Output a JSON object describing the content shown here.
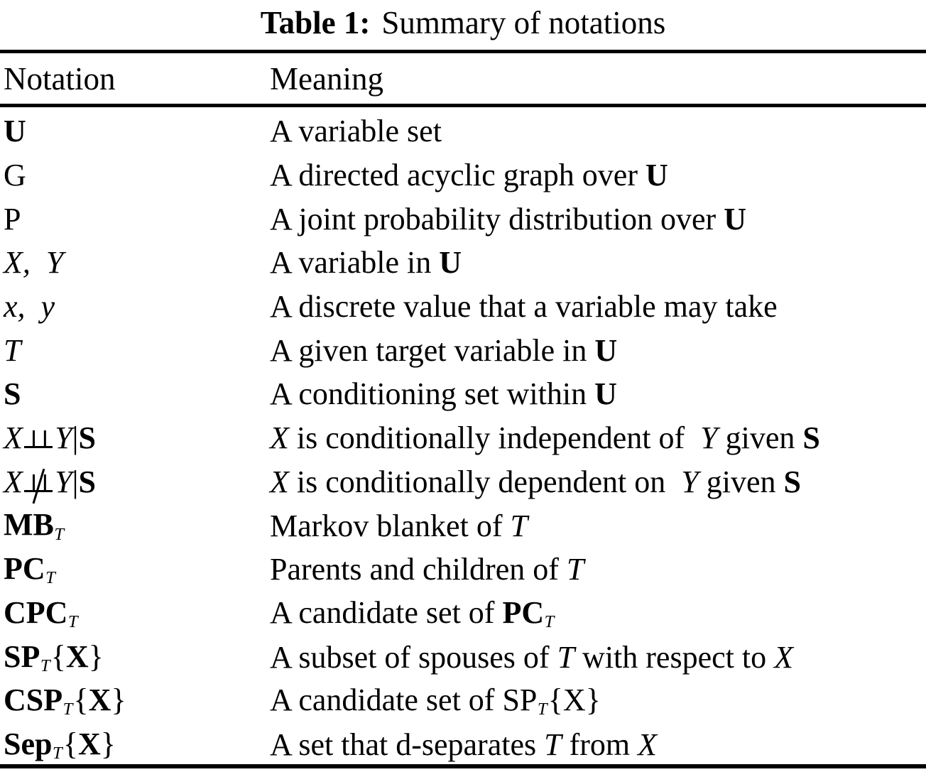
{
  "colors": {
    "background": "#ffffff",
    "text": "#000000",
    "rule": "#000000"
  },
  "caption": {
    "label": "Table 1:",
    "title": "Summary of notations"
  },
  "table": {
    "headers": [
      "Notation",
      "Meaning"
    ],
    "rows": [
      {
        "notation": [
          {
            "t": "U",
            "s": "b"
          }
        ],
        "meaning": [
          {
            "t": "A variable set",
            "s": "rm"
          }
        ]
      },
      {
        "notation": [
          {
            "t": "G",
            "s": "rm"
          }
        ],
        "meaning": [
          {
            "t": "A directed acyclic graph over ",
            "s": "rm"
          },
          {
            "t": "U",
            "s": "b"
          }
        ]
      },
      {
        "notation": [
          {
            "t": "P",
            "s": "rm"
          }
        ],
        "meaning": [
          {
            "t": "A joint probability distribution over ",
            "s": "rm"
          },
          {
            "t": "U",
            "s": "b"
          }
        ]
      },
      {
        "notation": [
          {
            "t": "X, Y",
            "s": "i"
          }
        ],
        "meaning": [
          {
            "t": "A variable in ",
            "s": "rm"
          },
          {
            "t": "U",
            "s": "b"
          }
        ]
      },
      {
        "notation": [
          {
            "t": "x, y",
            "s": "i"
          }
        ],
        "meaning": [
          {
            "t": "A discrete value that a variable may take",
            "s": "rm"
          }
        ]
      },
      {
        "notation": [
          {
            "t": "T",
            "s": "i"
          }
        ],
        "meaning": [
          {
            "t": "A given target variable in ",
            "s": "rm"
          },
          {
            "t": "U",
            "s": "b"
          }
        ]
      },
      {
        "notation": [
          {
            "t": "S",
            "s": "b"
          }
        ],
        "meaning": [
          {
            "t": "A conditioning set within ",
            "s": "rm"
          },
          {
            "t": "U",
            "s": "b"
          }
        ]
      },
      {
        "notation": [
          {
            "t": "X",
            "s": "i"
          },
          {
            "t": "",
            "s": "indep"
          },
          {
            "t": "Y",
            "s": "i"
          },
          {
            "t": "|",
            "s": "rm"
          },
          {
            "t": "S",
            "s": "b"
          }
        ],
        "meaning": [
          {
            "t": "X",
            "s": "i"
          },
          {
            "t": " is conditionally independent of ",
            "s": "rm"
          },
          {
            "t": "Y",
            "s": "i"
          },
          {
            "t": " given ",
            "s": "rm"
          },
          {
            "t": "S",
            "s": "b"
          }
        ]
      },
      {
        "notation": [
          {
            "t": "X",
            "s": "i"
          },
          {
            "t": "",
            "s": "nindep"
          },
          {
            "t": "Y",
            "s": "i"
          },
          {
            "t": "|",
            "s": "rm"
          },
          {
            "t": "S",
            "s": "b"
          }
        ],
        "meaning": [
          {
            "t": "X",
            "s": "i"
          },
          {
            "t": " is conditionally dependent on ",
            "s": "rm"
          },
          {
            "t": "Y",
            "s": "i"
          },
          {
            "t": " given ",
            "s": "rm"
          },
          {
            "t": "S",
            "s": "b"
          }
        ]
      },
      {
        "notation": [
          {
            "t": "MB",
            "s": "b"
          },
          {
            "t": "T",
            "s": "isub"
          }
        ],
        "meaning": [
          {
            "t": "Markov blanket of ",
            "s": "rm"
          },
          {
            "t": "T",
            "s": "i"
          }
        ]
      },
      {
        "notation": [
          {
            "t": "PC",
            "s": "b"
          },
          {
            "t": "T",
            "s": "isub"
          }
        ],
        "meaning": [
          {
            "t": "Parents and children of ",
            "s": "rm"
          },
          {
            "t": "T",
            "s": "i"
          }
        ]
      },
      {
        "notation": [
          {
            "t": "CPC",
            "s": "b"
          },
          {
            "t": "T",
            "s": "isub"
          }
        ],
        "meaning": [
          {
            "t": "A candidate set of ",
            "s": "rm"
          },
          {
            "t": "PC",
            "s": "b"
          },
          {
            "t": "T",
            "s": "isub"
          }
        ]
      },
      {
        "notation": [
          {
            "t": "SP",
            "s": "b"
          },
          {
            "t": "T",
            "s": "isub"
          },
          {
            "t": "{",
            "s": "rm"
          },
          {
            "t": "X",
            "s": "b"
          },
          {
            "t": "}",
            "s": "rm"
          }
        ],
        "meaning": [
          {
            "t": "A subset of spouses of ",
            "s": "rm"
          },
          {
            "t": "T",
            "s": "i"
          },
          {
            "t": " with respect to ",
            "s": "rm"
          },
          {
            "t": "X",
            "s": "i"
          }
        ]
      },
      {
        "notation": [
          {
            "t": "CSP",
            "s": "b"
          },
          {
            "t": "T",
            "s": "isub"
          },
          {
            "t": "{",
            "s": "rm"
          },
          {
            "t": "X",
            "s": "b"
          },
          {
            "t": "}",
            "s": "rm"
          }
        ],
        "meaning": [
          {
            "t": "A candidate set of SP",
            "s": "rm"
          },
          {
            "t": "T",
            "s": "isub"
          },
          {
            "t": "{X}",
            "s": "rm"
          }
        ]
      },
      {
        "notation": [
          {
            "t": "Sep",
            "s": "b"
          },
          {
            "t": "T",
            "s": "isub"
          },
          {
            "t": "{",
            "s": "rm"
          },
          {
            "t": "X",
            "s": "b"
          },
          {
            "t": "}",
            "s": "rm"
          }
        ],
        "meaning": [
          {
            "t": "A set that d-separates ",
            "s": "rm"
          },
          {
            "t": "T",
            "s": "i"
          },
          {
            "t": " from ",
            "s": "rm"
          },
          {
            "t": "X",
            "s": "i"
          }
        ]
      }
    ]
  }
}
